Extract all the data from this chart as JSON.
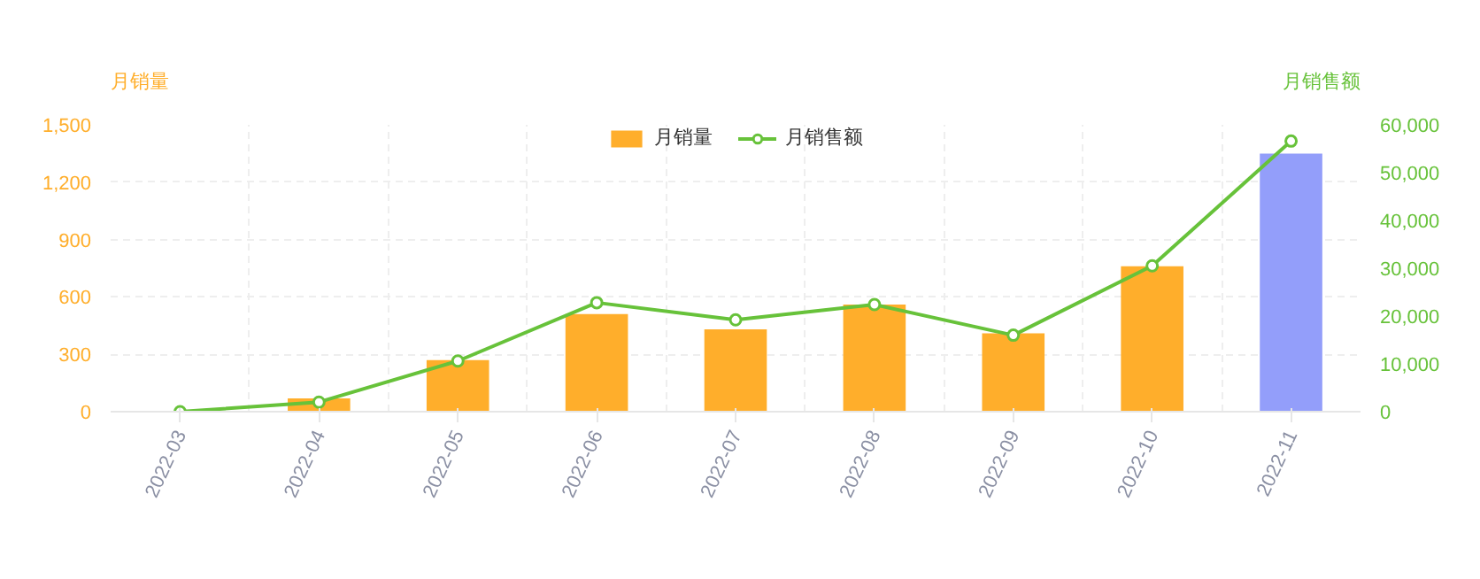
{
  "chart_data": {
    "type": "bar",
    "categories": [
      "2022-03",
      "2022-04",
      "2022-05",
      "2022-06",
      "2022-07",
      "2022-08",
      "2022-09",
      "2022-10",
      "2022-11"
    ],
    "series": [
      {
        "name": "月销量",
        "color": "#ffae2b",
        "colors": [
          "#ffae2b",
          "#ffae2b",
          "#ffae2b",
          "#ffae2b",
          "#ffae2b",
          "#ffae2b",
          "#ffae2b",
          "#ffae2b",
          "#939efa"
        ],
        "values": [
          0,
          70,
          270,
          510,
          430,
          560,
          410,
          760,
          1350
        ]
      },
      {
        "name": "月销售额",
        "type": "line",
        "axis": "y2",
        "color": "#67c23a",
        "marker": "circle",
        "values": [
          0,
          2000,
          10600,
          22800,
          19200,
          22400,
          16000,
          30500,
          56600
        ]
      }
    ],
    "ylabel": "月销量",
    "y2label": "月销售额",
    "ylim": [
      0,
      1500
    ],
    "yticks": [
      0,
      300,
      600,
      900,
      {
        "value": 1200,
        "label": "1,200"
      },
      {
        "value": 1500,
        "label": "1,500"
      }
    ],
    "y2lim": [
      0,
      60000
    ],
    "y2ticks": [
      0,
      {
        "value": 10000,
        "label": "10,000"
      },
      {
        "value": 20000,
        "label": "20,000"
      },
      {
        "value": 30000,
        "label": "30,000"
      },
      {
        "value": 40000,
        "label": "40,000"
      },
      {
        "value": 50000,
        "label": "50,000"
      },
      {
        "value": 60000,
        "label": "60,000"
      }
    ],
    "grid": true,
    "legend": "top"
  }
}
